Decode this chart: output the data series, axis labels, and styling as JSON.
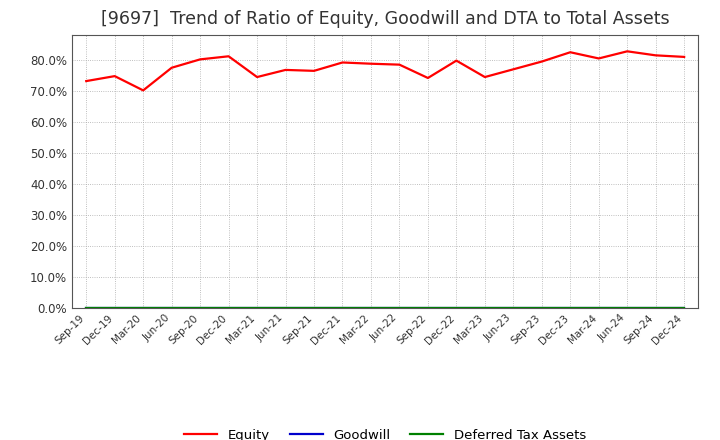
{
  "title": "[9697]  Trend of Ratio of Equity, Goodwill and DTA to Total Assets",
  "x_labels": [
    "Sep-19",
    "Dec-19",
    "Mar-20",
    "Jun-20",
    "Sep-20",
    "Dec-20",
    "Mar-21",
    "Jun-21",
    "Sep-21",
    "Dec-21",
    "Mar-22",
    "Jun-22",
    "Sep-22",
    "Dec-22",
    "Mar-23",
    "Jun-23",
    "Sep-23",
    "Dec-23",
    "Mar-24",
    "Jun-24",
    "Sep-24",
    "Dec-24"
  ],
  "equity": [
    73.2,
    74.8,
    70.2,
    77.5,
    80.2,
    81.2,
    74.5,
    76.8,
    76.5,
    79.2,
    78.8,
    78.5,
    74.2,
    79.8,
    74.5,
    77.0,
    79.5,
    82.5,
    80.5,
    82.8,
    81.5,
    81.0
  ],
  "goodwill": [
    0.0,
    0.0,
    0.0,
    0.0,
    0.0,
    0.0,
    0.0,
    0.0,
    0.0,
    0.0,
    0.0,
    0.0,
    0.0,
    0.0,
    0.0,
    0.0,
    0.0,
    0.0,
    0.0,
    0.0,
    0.0,
    0.0
  ],
  "dta": [
    0.0,
    0.0,
    0.0,
    0.0,
    0.0,
    0.0,
    0.0,
    0.0,
    0.0,
    0.0,
    0.0,
    0.0,
    0.0,
    0.0,
    0.0,
    0.0,
    0.0,
    0.0,
    0.0,
    0.0,
    0.0,
    0.0
  ],
  "equity_color": "#FF0000",
  "goodwill_color": "#0000CC",
  "dta_color": "#008000",
  "background_color": "#FFFFFF",
  "plot_bg_color": "#FFFFFF",
  "grid_color": "#AAAAAA",
  "ylim": [
    0,
    88
  ],
  "yticks": [
    0,
    10,
    20,
    30,
    40,
    50,
    60,
    70,
    80
  ],
  "title_fontsize": 12.5,
  "title_color": "#333333",
  "tick_color": "#333333",
  "legend_labels": [
    "Equity",
    "Goodwill",
    "Deferred Tax Assets"
  ]
}
